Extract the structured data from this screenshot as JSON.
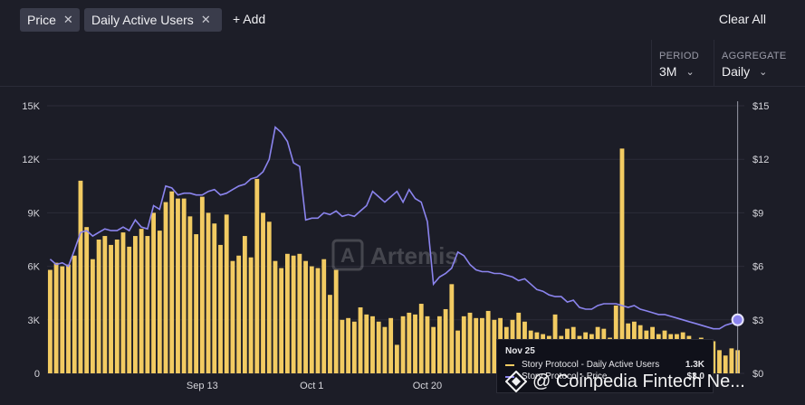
{
  "filters": {
    "chips": [
      {
        "label": "Price",
        "remove": "✕"
      },
      {
        "label": "Daily Active Users",
        "remove": "✕"
      }
    ],
    "add_label": "+ Add",
    "clear_label": "Clear All"
  },
  "controls": {
    "period": {
      "label": "PERIOD",
      "value": "3M"
    },
    "aggregate": {
      "label": "AGGREGATE",
      "value": "Daily"
    }
  },
  "watermark": "Artemis",
  "source_overlay": "@ Coinpedia Fintech Ne...",
  "tooltip": {
    "date": "Nov 25",
    "rows": [
      {
        "label": "Story Protocol - Daily Active Users",
        "value": "1.3K"
      },
      {
        "label": "Story Protocol - Price",
        "value": "$3.0"
      }
    ]
  },
  "colors": {
    "bars": "#f2cb62",
    "line": "#8b84ee",
    "background": "#1c1d27"
  },
  "chart_data": {
    "type": "bar",
    "x_tick_labels": [
      "Sep 13",
      "Oct 1",
      "Oct 20"
    ],
    "x_tick_indices": [
      25,
      43,
      62
    ],
    "y_left": {
      "ticks": [
        "0",
        "3K",
        "6K",
        "9K",
        "12K",
        "15K"
      ],
      "range": [
        0,
        15000
      ]
    },
    "y_right": {
      "ticks": [
        "$0",
        "$3",
        "$6",
        "$9",
        "$12",
        "$15"
      ],
      "range": [
        0,
        15
      ]
    },
    "series": [
      {
        "name": "Story Protocol - Daily Active Users",
        "type": "bar",
        "axis": "left",
        "values": [
          5800,
          6200,
          6000,
          6100,
          6600,
          10800,
          8200,
          6400,
          7500,
          7700,
          7200,
          7500,
          7900,
          7100,
          7700,
          8100,
          7700,
          9000,
          8000,
          9600,
          10200,
          9800,
          9800,
          8800,
          7800,
          9900,
          9000,
          8400,
          7200,
          8900,
          6300,
          6600,
          7700,
          6500,
          10900,
          9000,
          8500,
          6300,
          5900,
          6700,
          6600,
          6700,
          6300,
          6000,
          5900,
          6400,
          4400,
          5800,
          3000,
          3100,
          2900,
          3700,
          3300,
          3200,
          2900,
          2600,
          3100,
          1600,
          3200,
          3400,
          3300,
          3900,
          3200,
          2600,
          3200,
          3600,
          5000,
          2400,
          3200,
          3400,
          3100,
          3100,
          3500,
          3000,
          3100,
          2600,
          3000,
          3400,
          2900,
          2400,
          2300,
          2200,
          2100,
          3300,
          2100,
          2500,
          2600,
          2100,
          2300,
          2200,
          2600,
          2500,
          2000,
          3800,
          12600,
          2800,
          2900,
          2700,
          2400,
          2600,
          2200,
          2400,
          2200,
          2200,
          2300,
          2100,
          1800,
          2000,
          1500,
          1800,
          1300,
          1000,
          1400,
          1300
        ]
      },
      {
        "name": "Story Protocol - Price",
        "type": "line",
        "axis": "right",
        "values": [
          6.4,
          6.1,
          6.2,
          6.0,
          6.9,
          7.9,
          8.0,
          7.7,
          7.9,
          8.1,
          8.0,
          8.0,
          8.2,
          8.0,
          8.6,
          8.2,
          8.1,
          9.4,
          9.2,
          10.5,
          10.4,
          10.0,
          10.1,
          10.1,
          10.0,
          10.0,
          10.2,
          10.3,
          10.0,
          10.1,
          10.3,
          10.5,
          10.6,
          10.9,
          11.0,
          11.3,
          12.0,
          13.8,
          13.5,
          13.0,
          11.8,
          11.6,
          8.6,
          8.7,
          8.7,
          9.0,
          8.9,
          9.1,
          8.8,
          8.9,
          8.8,
          9.1,
          9.4,
          10.2,
          9.9,
          9.6,
          9.9,
          10.2,
          9.6,
          10.3,
          9.8,
          9.6,
          8.5,
          5.0,
          5.4,
          5.6,
          5.9,
          6.8,
          6.6,
          6.1,
          5.8,
          5.7,
          5.7,
          5.6,
          5.6,
          5.5,
          5.4,
          5.2,
          5.3,
          5.0,
          4.7,
          4.6,
          4.4,
          4.3,
          4.3,
          4.0,
          4.1,
          3.7,
          3.6,
          3.6,
          3.8,
          3.9,
          3.9,
          3.9,
          3.8,
          3.7,
          3.8,
          3.6,
          3.5,
          3.4,
          3.3,
          3.3,
          3.2,
          3.1,
          3.0,
          2.9,
          2.8,
          2.7,
          2.6,
          2.5,
          2.5,
          2.7,
          2.8,
          3.0
        ]
      }
    ]
  }
}
